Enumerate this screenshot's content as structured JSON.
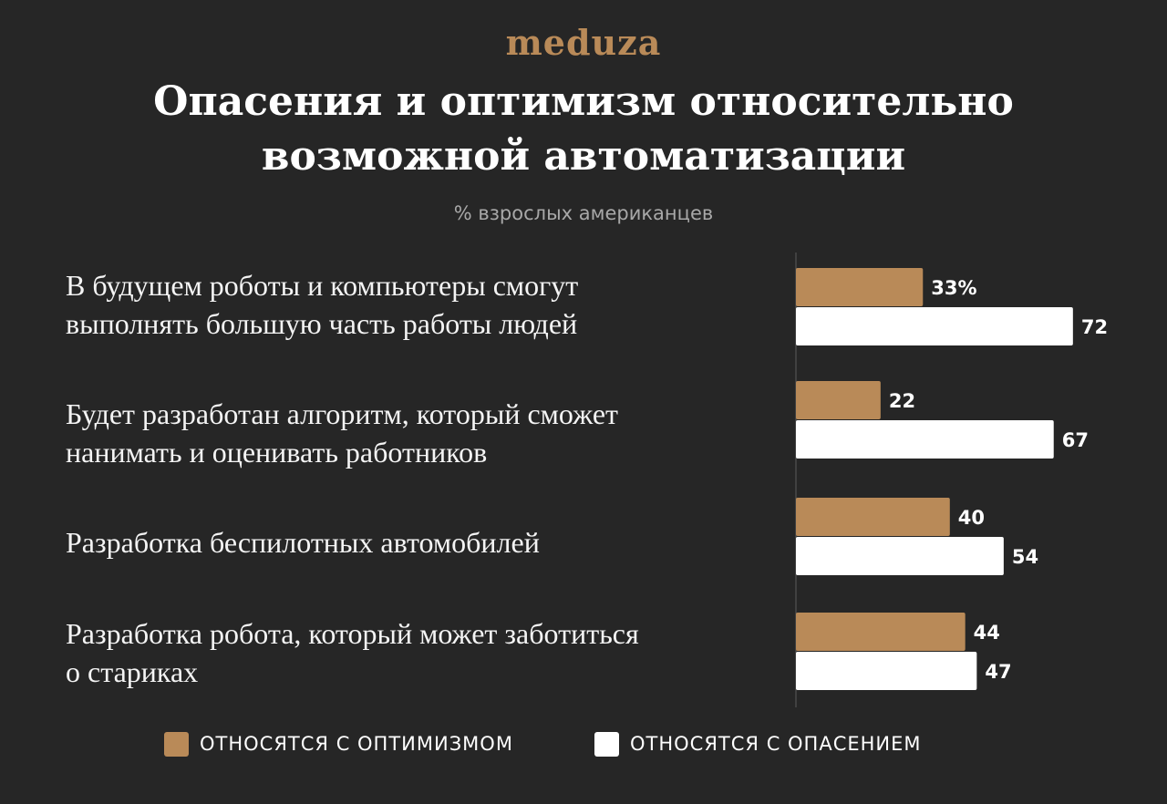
{
  "logo_text": "meduza",
  "chart_data": {
    "type": "bar",
    "orientation": "horizontal",
    "title_lines": [
      "Опасения и оптимизм относительно",
      "возможной автоматизации"
    ],
    "subtitle": "% взрослых американцев",
    "categories": [
      [
        "В будущем роботы и компьютеры смогут",
        "выполнять большую часть работы людей"
      ],
      [
        "Будет разработан алгоритм, который сможет",
        "нанимать и оценивать работников"
      ],
      [
        "Разработка беспилотных автомобилей"
      ],
      [
        "Разработка робота, который может заботиться",
        "о стариках"
      ]
    ],
    "series": [
      {
        "name": "ОТНОСЯТСЯ С ОПТИМИЗМОМ",
        "color": "#b98a58",
        "values": [
          33,
          22,
          40,
          44
        ]
      },
      {
        "name": "ОТНОСЯТСЯ С ОПАСЕНИЕМ",
        "color": "#ffffff",
        "values": [
          72,
          67,
          54,
          47
        ]
      }
    ],
    "value_labels": [
      [
        "33%",
        "22",
        "40",
        "44"
      ],
      [
        "72",
        "67",
        "54",
        "47"
      ]
    ],
    "xlim": [
      0,
      100
    ],
    "grid": false,
    "legend_position": "bottom"
  },
  "colors": {
    "background": "#262626",
    "accent": "#b98a58",
    "axis": "#5a5a5a"
  }
}
